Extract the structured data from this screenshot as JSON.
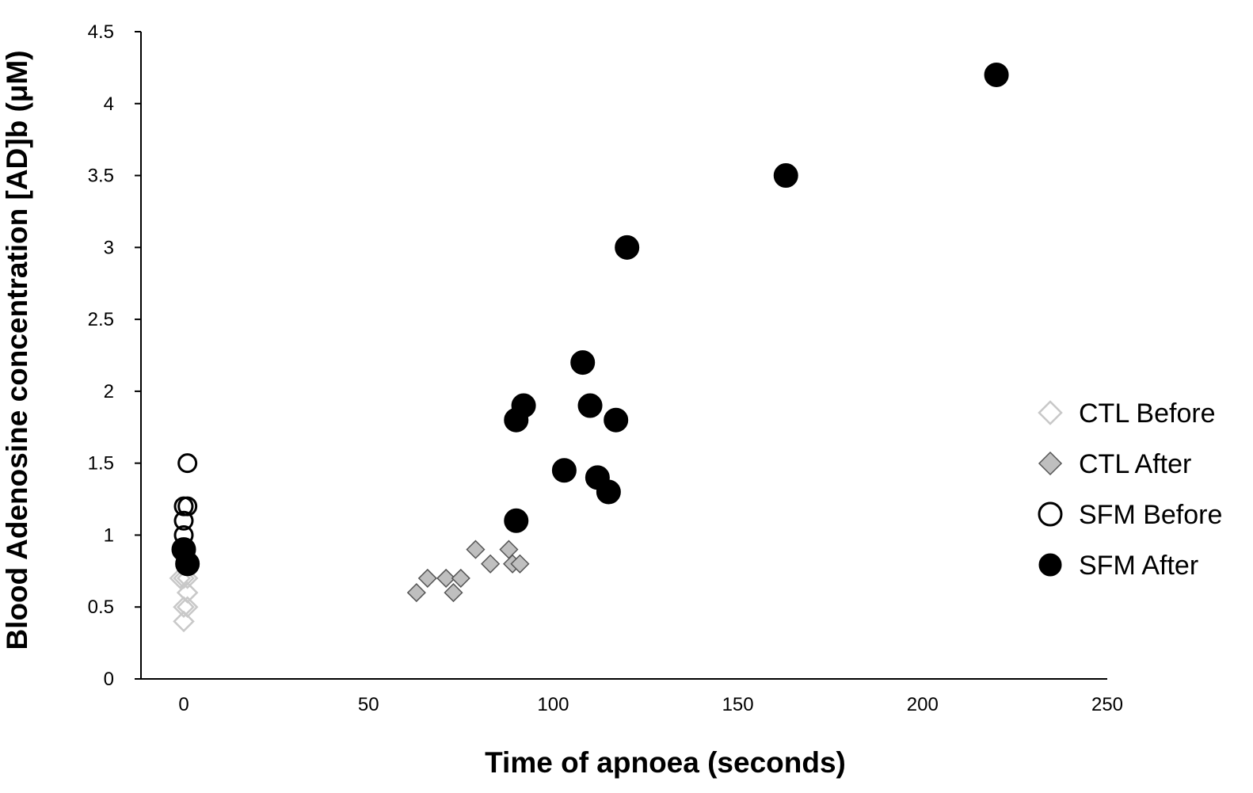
{
  "chart_data": {
    "type": "scatter",
    "xlabel": "Time of apnoea (seconds)",
    "ylabel": "Blood Adenosine concentration [AD]b (μM)",
    "xlim": [
      0,
      250
    ],
    "ylim": [
      0,
      4.5
    ],
    "x_ticks": [
      "0",
      "50",
      "100",
      "150",
      "200",
      "250"
    ],
    "y_ticks": [
      "0",
      "0.5",
      "1",
      "1.5",
      "2",
      "2.5",
      "3",
      "3.5",
      "4",
      "4.5"
    ],
    "grid": false,
    "legend_position": "right",
    "series": [
      {
        "name": "CTL Before",
        "marker": "diamond-open",
        "color": "#c8c8c8",
        "points": [
          {
            "x": 0,
            "y": 0.4
          },
          {
            "x": 0,
            "y": 0.5
          },
          {
            "x": 1,
            "y": 0.5
          },
          {
            "x": 1,
            "y": 0.6
          },
          {
            "x": -1,
            "y": 0.7
          },
          {
            "x": 0,
            "y": 0.7
          },
          {
            "x": 1,
            "y": 0.7
          },
          {
            "x": 1,
            "y": 0.8
          }
        ]
      },
      {
        "name": "CTL After",
        "marker": "diamond-filled",
        "color": "#bfbfbf",
        "points": [
          {
            "x": 63,
            "y": 0.6
          },
          {
            "x": 66,
            "y": 0.7
          },
          {
            "x": 71,
            "y": 0.7
          },
          {
            "x": 73,
            "y": 0.6
          },
          {
            "x": 75,
            "y": 0.7
          },
          {
            "x": 79,
            "y": 0.9
          },
          {
            "x": 83,
            "y": 0.8
          },
          {
            "x": 88,
            "y": 0.9
          },
          {
            "x": 89,
            "y": 0.8
          },
          {
            "x": 91,
            "y": 0.8
          }
        ]
      },
      {
        "name": "SFM Before",
        "marker": "circle-open",
        "color": "#000000",
        "points": [
          {
            "x": 0,
            "y": 1.0
          },
          {
            "x": 0,
            "y": 1.1
          },
          {
            "x": 0,
            "y": 1.2
          },
          {
            "x": 1,
            "y": 1.2
          },
          {
            "x": 1,
            "y": 1.5
          }
        ]
      },
      {
        "name": "SFM After",
        "marker": "circle-filled",
        "color": "#000000",
        "points": [
          {
            "x": 0,
            "y": 0.9
          },
          {
            "x": 1,
            "y": 0.8
          },
          {
            "x": 90,
            "y": 1.1
          },
          {
            "x": 90,
            "y": 1.8
          },
          {
            "x": 92,
            "y": 1.9
          },
          {
            "x": 103,
            "y": 1.45
          },
          {
            "x": 108,
            "y": 2.2
          },
          {
            "x": 110,
            "y": 1.9
          },
          {
            "x": 112,
            "y": 1.4
          },
          {
            "x": 115,
            "y": 1.3
          },
          {
            "x": 117,
            "y": 1.8
          },
          {
            "x": 120,
            "y": 3.0
          },
          {
            "x": 163,
            "y": 3.5
          },
          {
            "x": 220,
            "y": 4.2
          }
        ]
      }
    ]
  }
}
